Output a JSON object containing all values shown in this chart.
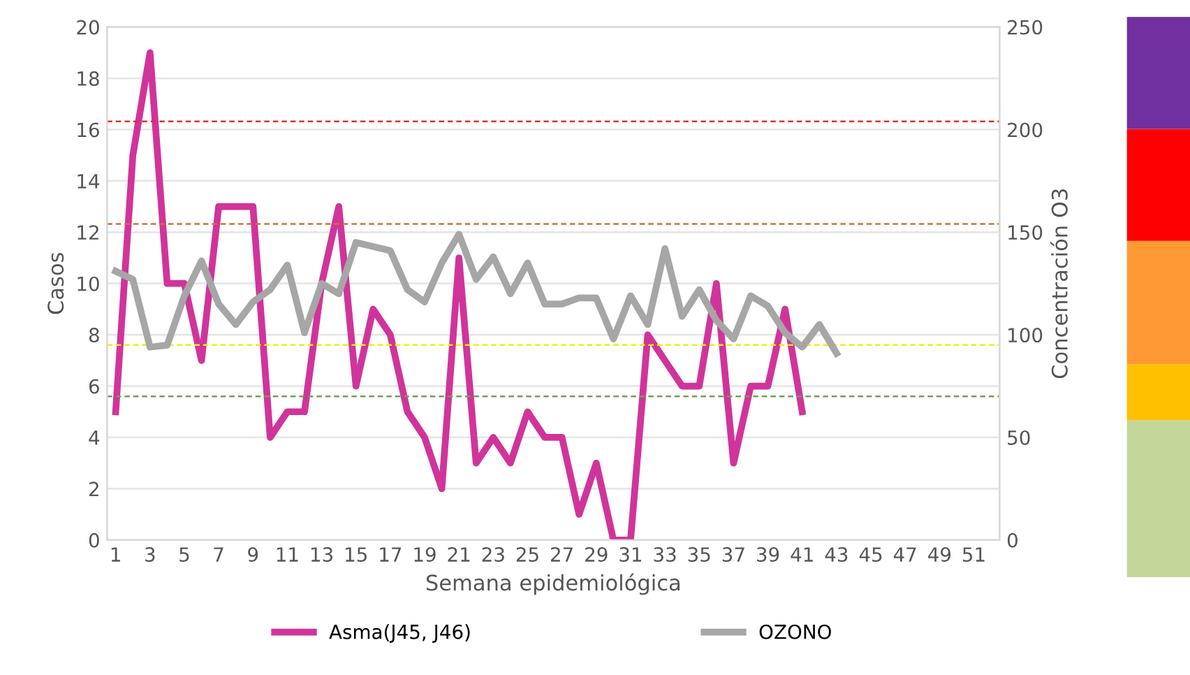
{
  "chart_data": {
    "type": "line",
    "xlabel": "Semana epidemiológica",
    "ylabel": "Casos",
    "y2label": "Concentración O3",
    "categories": [
      "1",
      null,
      "3",
      null,
      "5",
      null,
      "7",
      null,
      "9",
      null,
      "11",
      null,
      "13",
      null,
      "15",
      null,
      "17",
      null,
      "19",
      null,
      "21",
      null,
      "23",
      null,
      "25",
      null,
      "27",
      null,
      "29",
      null,
      "31",
      null,
      "33",
      null,
      "35",
      null,
      "37",
      null,
      "39",
      null,
      "41",
      null,
      "43",
      null,
      "45",
      null,
      "47",
      null,
      "49",
      null,
      "51",
      null
    ],
    "series": [
      {
        "name": "Asma(J45, J46)",
        "color": "#d0349b",
        "values": [
          5,
          15,
          19,
          10,
          10,
          7,
          13,
          13,
          13,
          4,
          5,
          5,
          10,
          13,
          6,
          9,
          8,
          5,
          4,
          2,
          11,
          3,
          4,
          3,
          5,
          4,
          4,
          1,
          3,
          0,
          0,
          8,
          7,
          6,
          6,
          10,
          3,
          6,
          6,
          9,
          5,
          null,
          null,
          null,
          null,
          null,
          null,
          null,
          null,
          null,
          null,
          null
        ]
      },
      {
        "name": "OZONO",
        "color": "#a6a6a6",
        "axis": "y2",
        "values": [
          131,
          127,
          94,
          95,
          119,
          136,
          115,
          105,
          116,
          122,
          134,
          101,
          125,
          120,
          145,
          143,
          141,
          122,
          116,
          135,
          149,
          127,
          138,
          120,
          135,
          115,
          115,
          118,
          118,
          98,
          119,
          105,
          142,
          109,
          122,
          107,
          98,
          119,
          114,
          101,
          94,
          105,
          91,
          null,
          null,
          null,
          null,
          null,
          null,
          null,
          null,
          null
        ]
      }
    ],
    "ylim": [
      0,
      20
    ],
    "yticks": [
      0,
      2,
      4,
      6,
      8,
      10,
      12,
      14,
      16,
      18,
      20
    ],
    "y2lim": [
      0,
      250
    ],
    "y2ticks": [
      0,
      50,
      100,
      150,
      200,
      250
    ],
    "ref_lines": [
      {
        "axis": "y2",
        "value": 204,
        "color": "#e03030",
        "line_style": "dashed"
      },
      {
        "axis": "y2",
        "value": 154,
        "color": "#d07030",
        "line_style": "dashed"
      },
      {
        "axis": "y2",
        "value": 95,
        "color": "#f0f000",
        "line_style": "dashed"
      },
      {
        "axis": "y2",
        "value": 70,
        "color": "#70a050",
        "line_style": "dashed"
      }
    ],
    "grid": "y",
    "legend": "bottom",
    "line_style": "solid",
    "marker": "none"
  }
}
